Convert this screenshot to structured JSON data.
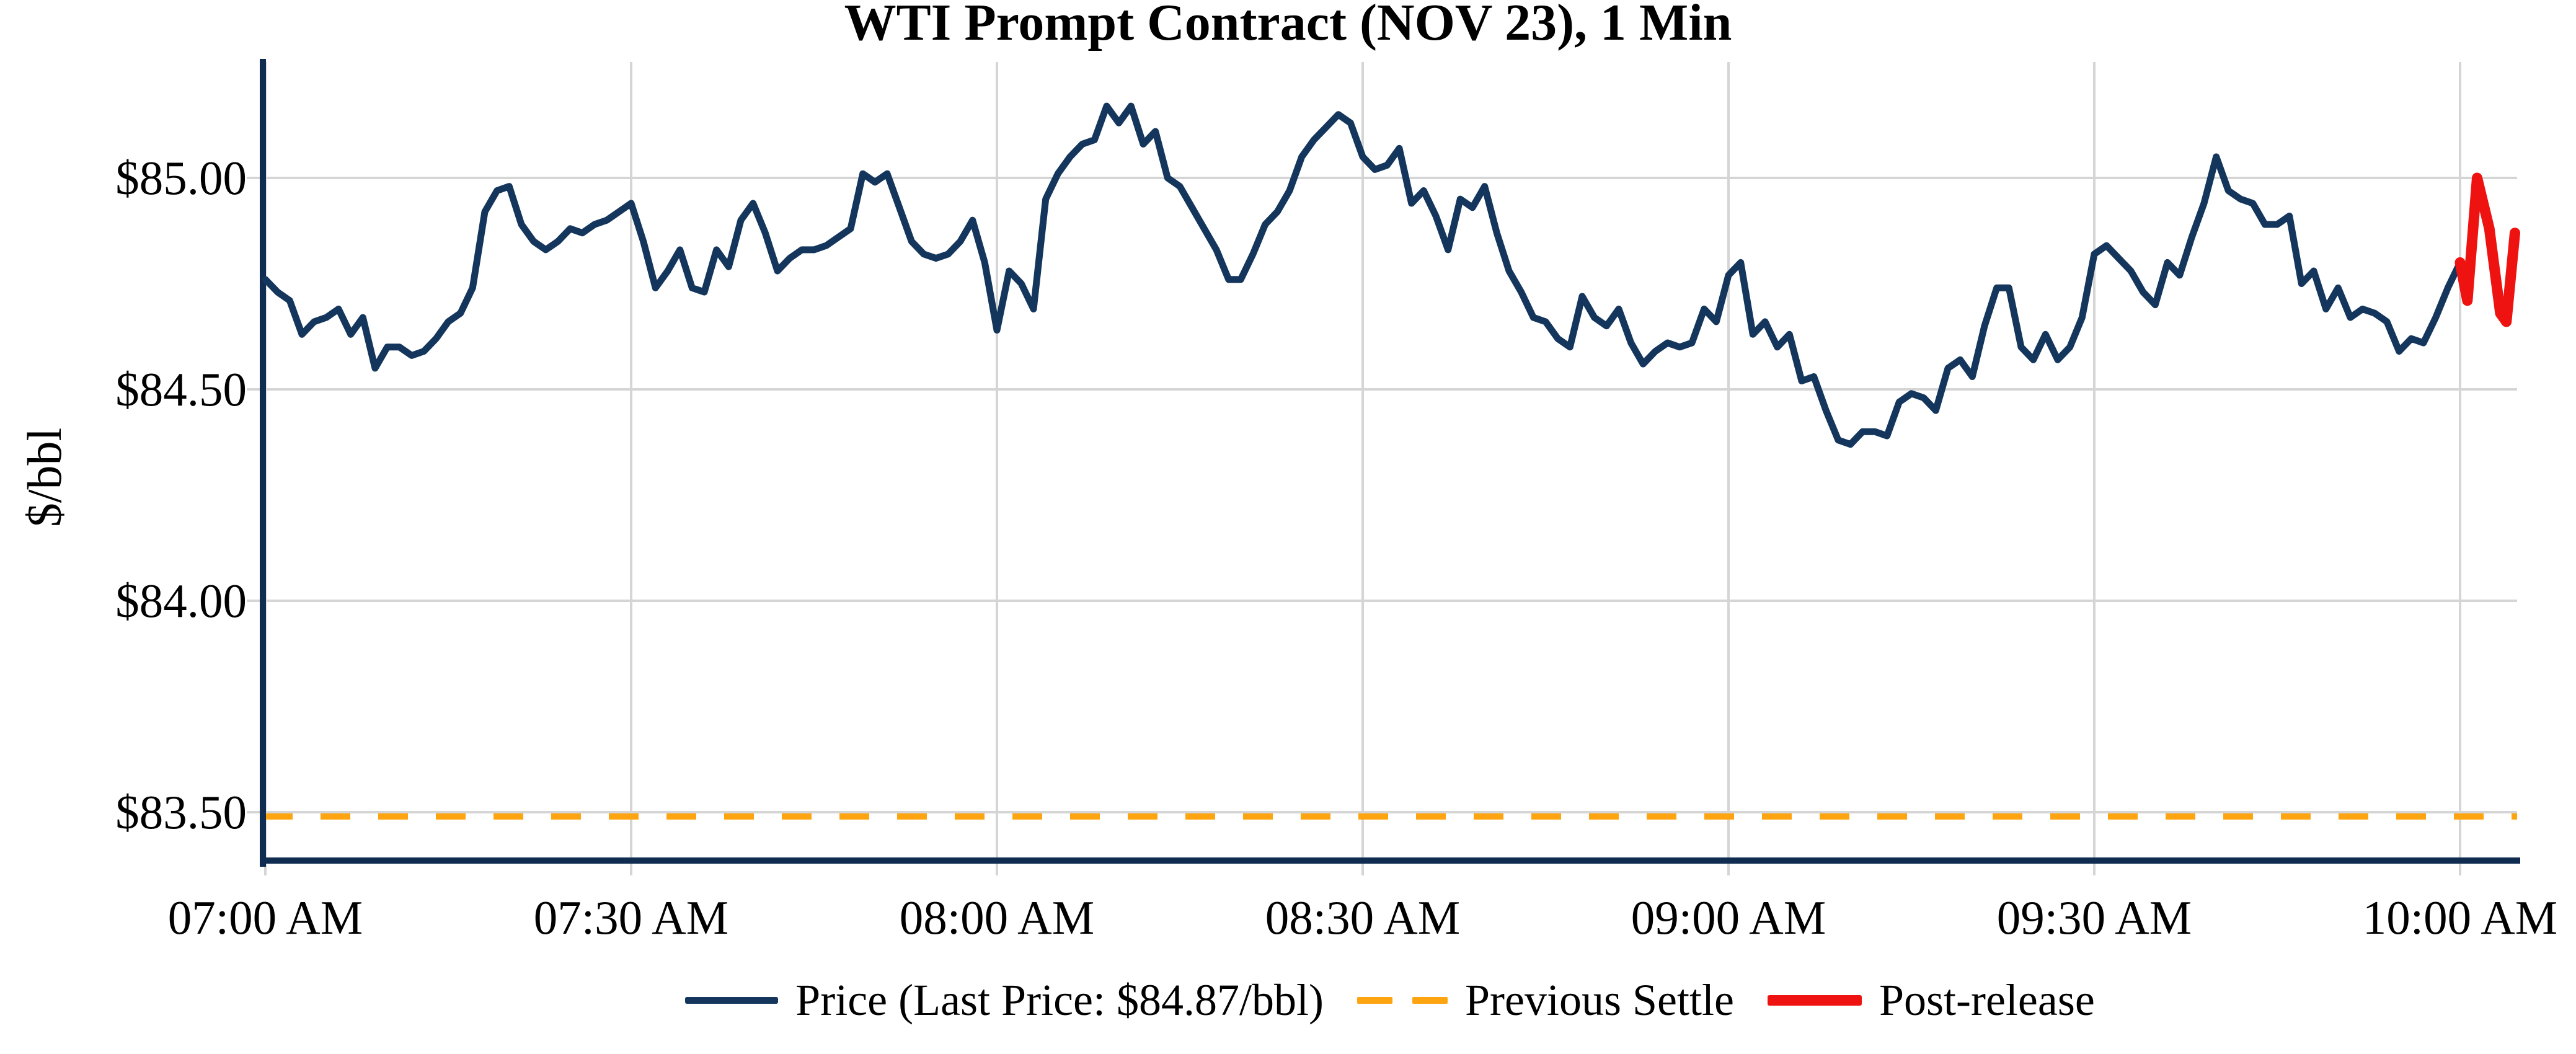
{
  "chart": {
    "title": "WTI Prompt Contract (NOV 23), 1 Min",
    "y_axis": {
      "title": "$/bbl",
      "tick_labels": [
        "$85.00",
        "$84.50",
        "$84.00",
        "$83.50"
      ],
      "tick_values": [
        85.0,
        84.5,
        84.0,
        83.5
      ]
    },
    "x_axis": {
      "tick_labels": [
        "07:00 AM",
        "07:30 AM",
        "08:00 AM",
        "08:30 AM",
        "09:00 AM",
        "09:30 AM",
        "10:00 AM"
      ],
      "tick_minutes": [
        0,
        30,
        60,
        90,
        120,
        150,
        180
      ]
    },
    "legend": {
      "price_label": "Price (Last Price: $84.87/bbl)",
      "settle_label": "Previous Settle",
      "post_label": "Post-release"
    },
    "colors": {
      "price": "#14365c",
      "post_release": "#ee1310",
      "previous_settle": "#ffa411",
      "grid": "#d5d5d5",
      "spine": "#102c50",
      "text": "#000000"
    }
  },
  "chart_data": {
    "type": "line",
    "title": "WTI Prompt Contract (NOV 23), 1 Min",
    "xlabel": "",
    "ylabel": "$/bbl",
    "x_unit": "minutes since 07:00 AM",
    "x_tick_labels": [
      "07:00 AM",
      "07:30 AM",
      "08:00 AM",
      "08:30 AM",
      "09:00 AM",
      "09:30 AM",
      "10:00 AM"
    ],
    "x_tick_minutes": [
      0,
      30,
      60,
      90,
      120,
      150,
      180
    ],
    "y_tick_values": [
      85.0,
      84.5,
      84.0,
      83.5
    ],
    "ylim": [
      83.39,
      85.27
    ],
    "xlim_minutes": [
      -0.25,
      184.8
    ],
    "grid": true,
    "legend_position": "bottom center",
    "previous_settle": 83.49,
    "last_price": 84.87,
    "series": [
      {
        "name": "Price (Last Price: $84.87/bbl)",
        "color": "#14365c",
        "points": [
          [
            0,
            84.76
          ],
          [
            1,
            84.73
          ],
          [
            2,
            84.71
          ],
          [
            3,
            84.63
          ],
          [
            4,
            84.66
          ],
          [
            5,
            84.67
          ],
          [
            6,
            84.69
          ],
          [
            7,
            84.63
          ],
          [
            8,
            84.67
          ],
          [
            9,
            84.55
          ],
          [
            10,
            84.6
          ],
          [
            11,
            84.6
          ],
          [
            12,
            84.58
          ],
          [
            13,
            84.59
          ],
          [
            14,
            84.62
          ],
          [
            15,
            84.66
          ],
          [
            16,
            84.68
          ],
          [
            17,
            84.74
          ],
          [
            18,
            84.92
          ],
          [
            19,
            84.97
          ],
          [
            20,
            84.98
          ],
          [
            21,
            84.89
          ],
          [
            22,
            84.85
          ],
          [
            23,
            84.83
          ],
          [
            24,
            84.85
          ],
          [
            25,
            84.88
          ],
          [
            26,
            84.87
          ],
          [
            27,
            84.89
          ],
          [
            28,
            84.9
          ],
          [
            29,
            84.92
          ],
          [
            30,
            84.94
          ],
          [
            31,
            84.85
          ],
          [
            32,
            84.74
          ],
          [
            33,
            84.78
          ],
          [
            34,
            84.83
          ],
          [
            35,
            84.74
          ],
          [
            36,
            84.73
          ],
          [
            37,
            84.83
          ],
          [
            38,
            84.79
          ],
          [
            39,
            84.9
          ],
          [
            40,
            84.94
          ],
          [
            41,
            84.87
          ],
          [
            42,
            84.78
          ],
          [
            43,
            84.81
          ],
          [
            44,
            84.83
          ],
          [
            45,
            84.83
          ],
          [
            46,
            84.84
          ],
          [
            47,
            84.86
          ],
          [
            48,
            84.88
          ],
          [
            49,
            85.01
          ],
          [
            50,
            84.99
          ],
          [
            51,
            85.01
          ],
          [
            52,
            84.93
          ],
          [
            53,
            84.85
          ],
          [
            54,
            84.82
          ],
          [
            55,
            84.81
          ],
          [
            56,
            84.82
          ],
          [
            57,
            84.85
          ],
          [
            58,
            84.9
          ],
          [
            59,
            84.8
          ],
          [
            60,
            84.64
          ],
          [
            61,
            84.78
          ],
          [
            62,
            84.75
          ],
          [
            63,
            84.69
          ],
          [
            64,
            84.95
          ],
          [
            65,
            85.01
          ],
          [
            66,
            85.05
          ],
          [
            67,
            85.08
          ],
          [
            68,
            85.09
          ],
          [
            69,
            85.17
          ],
          [
            70,
            85.13
          ],
          [
            71,
            85.17
          ],
          [
            72,
            85.08
          ],
          [
            73,
            85.11
          ],
          [
            74,
            85.0
          ],
          [
            75,
            84.98
          ],
          [
            76,
            84.93
          ],
          [
            77,
            84.88
          ],
          [
            78,
            84.83
          ],
          [
            79,
            84.76
          ],
          [
            80,
            84.76
          ],
          [
            81,
            84.82
          ],
          [
            82,
            84.89
          ],
          [
            83,
            84.92
          ],
          [
            84,
            84.97
          ],
          [
            85,
            85.05
          ],
          [
            86,
            85.09
          ],
          [
            87,
            85.12
          ],
          [
            88,
            85.15
          ],
          [
            89,
            85.13
          ],
          [
            90,
            85.05
          ],
          [
            91,
            85.02
          ],
          [
            92,
            85.03
          ],
          [
            93,
            85.07
          ],
          [
            94,
            84.94
          ],
          [
            95,
            84.97
          ],
          [
            96,
            84.91
          ],
          [
            97,
            84.83
          ],
          [
            98,
            84.95
          ],
          [
            99,
            84.93
          ],
          [
            100,
            84.98
          ],
          [
            101,
            84.87
          ],
          [
            102,
            84.78
          ],
          [
            103,
            84.73
          ],
          [
            104,
            84.67
          ],
          [
            105,
            84.66
          ],
          [
            106,
            84.62
          ],
          [
            107,
            84.6
          ],
          [
            108,
            84.72
          ],
          [
            109,
            84.67
          ],
          [
            110,
            84.65
          ],
          [
            111,
            84.69
          ],
          [
            112,
            84.61
          ],
          [
            113,
            84.56
          ],
          [
            114,
            84.59
          ],
          [
            115,
            84.61
          ],
          [
            116,
            84.6
          ],
          [
            117,
            84.61
          ],
          [
            118,
            84.69
          ],
          [
            119,
            84.66
          ],
          [
            120,
            84.77
          ],
          [
            121,
            84.8
          ],
          [
            122,
            84.63
          ],
          [
            123,
            84.66
          ],
          [
            124,
            84.6
          ],
          [
            125,
            84.63
          ],
          [
            126,
            84.52
          ],
          [
            127,
            84.53
          ],
          [
            128,
            84.45
          ],
          [
            129,
            84.38
          ],
          [
            130,
            84.37
          ],
          [
            131,
            84.4
          ],
          [
            132,
            84.4
          ],
          [
            133,
            84.39
          ],
          [
            134,
            84.47
          ],
          [
            135,
            84.49
          ],
          [
            136,
            84.48
          ],
          [
            137,
            84.45
          ],
          [
            138,
            84.55
          ],
          [
            139,
            84.57
          ],
          [
            140,
            84.53
          ],
          [
            141,
            84.65
          ],
          [
            142,
            84.74
          ],
          [
            143,
            84.74
          ],
          [
            144,
            84.6
          ],
          [
            145,
            84.57
          ],
          [
            146,
            84.63
          ],
          [
            147,
            84.57
          ],
          [
            148,
            84.6
          ],
          [
            149,
            84.67
          ],
          [
            150,
            84.82
          ],
          [
            151,
            84.84
          ],
          [
            152,
            84.81
          ],
          [
            153,
            84.78
          ],
          [
            154,
            84.73
          ],
          [
            155,
            84.7
          ],
          [
            156,
            84.8
          ],
          [
            157,
            84.77
          ],
          [
            158,
            84.86
          ],
          [
            159,
            84.94
          ],
          [
            160,
            85.05
          ],
          [
            161,
            84.97
          ],
          [
            162,
            84.95
          ],
          [
            163,
            84.94
          ],
          [
            164,
            84.89
          ],
          [
            165,
            84.89
          ],
          [
            166,
            84.91
          ],
          [
            167,
            84.75
          ],
          [
            168,
            84.78
          ],
          [
            169,
            84.69
          ],
          [
            170,
            84.74
          ],
          [
            171,
            84.67
          ],
          [
            172,
            84.69
          ],
          [
            173,
            84.68
          ],
          [
            174,
            84.66
          ],
          [
            175,
            84.59
          ],
          [
            176,
            84.62
          ],
          [
            177,
            84.61
          ],
          [
            178,
            84.67
          ],
          [
            179,
            84.74
          ],
          [
            180,
            84.8
          ]
        ]
      },
      {
        "name": "Post-release",
        "color": "#ee1310",
        "points": [
          [
            180,
            84.8
          ],
          [
            180.6,
            84.71
          ],
          [
            181.4,
            85.0
          ],
          [
            182.4,
            84.88
          ],
          [
            183.3,
            84.68
          ],
          [
            183.8,
            84.66
          ],
          [
            184.5,
            84.87
          ]
        ]
      }
    ]
  }
}
